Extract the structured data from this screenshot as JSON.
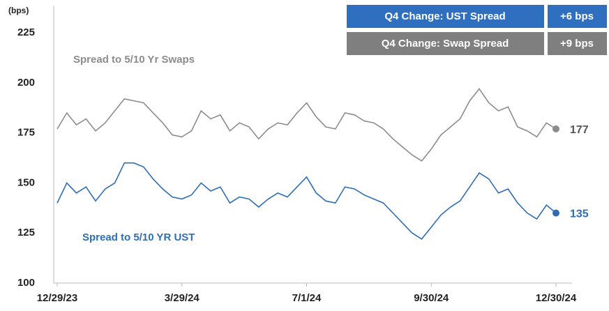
{
  "chart_data": {
    "type": "line",
    "y_label": "(bps)",
    "categories": [
      "12/29/23",
      null,
      null,
      null,
      null,
      null,
      null,
      null,
      null,
      null,
      null,
      null,
      null,
      "3/29/24",
      null,
      null,
      null,
      null,
      null,
      null,
      null,
      null,
      null,
      null,
      null,
      null,
      "7/1/24",
      null,
      null,
      null,
      null,
      null,
      null,
      null,
      null,
      null,
      null,
      null,
      null,
      "9/30/24",
      null,
      null,
      null,
      null,
      null,
      null,
      null,
      null,
      null,
      null,
      null,
      null,
      "12/30/24"
    ],
    "series": [
      {
        "name": "Spread to 5/10 Yr Swaps",
        "color": "#8c8c8c",
        "values": [
          177,
          185,
          179,
          182,
          176,
          180,
          186,
          192,
          191,
          190,
          185,
          180,
          174,
          173,
          176,
          186,
          182,
          184,
          176,
          180,
          178,
          172,
          177,
          180,
          179,
          185,
          190,
          183,
          178,
          177,
          185,
          184,
          181,
          180,
          177,
          172,
          168,
          164,
          161,
          167,
          174,
          178,
          182,
          191,
          197,
          190,
          186,
          188,
          178,
          176,
          173,
          180,
          177
        ]
      },
      {
        "name": "Spread to 5/10 YR UST",
        "color": "#2e6db4",
        "values": [
          140,
          150,
          145,
          148,
          141,
          147,
          150,
          160,
          160,
          158,
          152,
          147,
          143,
          142,
          144,
          150,
          146,
          148,
          140,
          143,
          142,
          138,
          142,
          145,
          143,
          148,
          153,
          145,
          141,
          140,
          148,
          147,
          144,
          142,
          140,
          135,
          130,
          125,
          122,
          128,
          134,
          138,
          141,
          148,
          155,
          152,
          145,
          147,
          140,
          135,
          132,
          139,
          135
        ]
      }
    ],
    "ylim": [
      100,
      225
    ],
    "yticks": [
      100,
      125,
      150,
      175,
      200,
      225
    ],
    "grid": false,
    "annotations": [
      {
        "label": "Q4 Change: UST Spread",
        "value": "+6 bps",
        "color": "#2e6fc0"
      },
      {
        "label": "Q4 Change: Swap Spread",
        "value": "+9 bps",
        "color": "#7f7f7f"
      }
    ]
  }
}
